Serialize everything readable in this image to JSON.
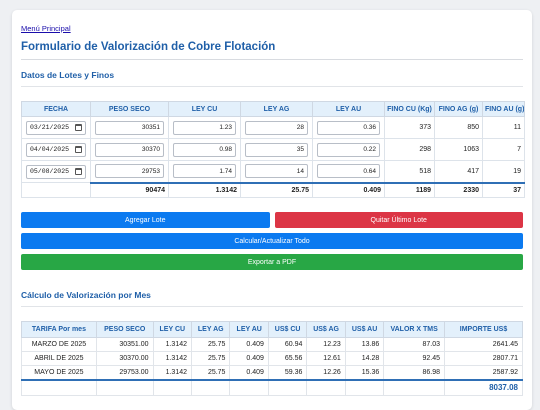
{
  "nav": {
    "menu_link": "Menú Principal"
  },
  "page": {
    "title": "Formulario de Valorización de Cobre Flotación"
  },
  "lots": {
    "section_title": "Datos de Lotes y Finos",
    "headers": [
      "FECHA",
      "PESO SECO",
      "LEY CU",
      "LEY AG",
      "LEY AU",
      "FINO CU (Kg)",
      "FINO AG (g)",
      "FINO AU (g)"
    ],
    "rows": [
      {
        "fecha": "03/21/2025",
        "peso_seco": "30351",
        "ley_cu": "1.23",
        "ley_ag": "28",
        "ley_au": "0.36",
        "fino_cu": "373",
        "fino_ag": "850",
        "fino_au": "11"
      },
      {
        "fecha": "04/04/2025",
        "peso_seco": "30370",
        "ley_cu": "0.98",
        "ley_ag": "35",
        "ley_au": "0.22",
        "fino_cu": "298",
        "fino_ag": "1063",
        "fino_au": "7"
      },
      {
        "fecha": "05/08/2025",
        "peso_seco": "29753",
        "ley_cu": "1.74",
        "ley_ag": "14",
        "ley_au": "0.64",
        "fino_cu": "518",
        "fino_ag": "417",
        "fino_au": "19"
      }
    ],
    "totals": {
      "peso_seco": "90474",
      "ley_cu": "1.3142",
      "ley_ag": "25.75",
      "ley_au": "0.409",
      "fino_cu": "1189",
      "fino_ag": "2330",
      "fino_au": "37"
    }
  },
  "buttons": {
    "add_lot": "Agregar Lote",
    "remove_last": "Quitar Último Lote",
    "calculate": "Calcular/Actualizar Todo",
    "export_pdf": "Exportar a PDF"
  },
  "valuation": {
    "section_title": "Cálculo de Valorización por Mes",
    "headers": [
      "TARIFA Por mes",
      "PESO SECO",
      "LEY CU",
      "LEY AG",
      "LEY AU",
      "US$ CU",
      "US$ AG",
      "US$ AU",
      "VALOR X TMS",
      "IMPORTE US$"
    ],
    "rows": [
      {
        "mes": "MARZO DE 2025",
        "peso_seco": "30351.00",
        "ley_cu": "1.3142",
        "ley_ag": "25.75",
        "ley_au": "0.409",
        "usd_cu": "60.94",
        "usd_ag": "12.23",
        "usd_au": "13.86",
        "valor_tms": "87.03",
        "importe": "2641.45"
      },
      {
        "mes": "ABRIL DE 2025",
        "peso_seco": "30370.00",
        "ley_cu": "1.3142",
        "ley_ag": "25.75",
        "ley_au": "0.409",
        "usd_cu": "65.56",
        "usd_ag": "12.61",
        "usd_au": "14.28",
        "valor_tms": "92.45",
        "importe": "2807.71"
      },
      {
        "mes": "MAYO DE 2025",
        "peso_seco": "29753.00",
        "ley_cu": "1.3142",
        "ley_ag": "25.75",
        "ley_au": "0.409",
        "usd_cu": "59.36",
        "usd_ag": "12.26",
        "usd_au": "15.36",
        "valor_tms": "86.98",
        "importe": "2587.92"
      }
    ],
    "total_importe": "8037.08"
  },
  "colors": {
    "accent_blue": "#0b7af0",
    "danger_red": "#dc3545",
    "success_green": "#28a745",
    "heading_blue": "#1f5fa8",
    "header_bg": "#e3f0fb"
  },
  "icons": {
    "date_picker": "calendar-icon"
  }
}
